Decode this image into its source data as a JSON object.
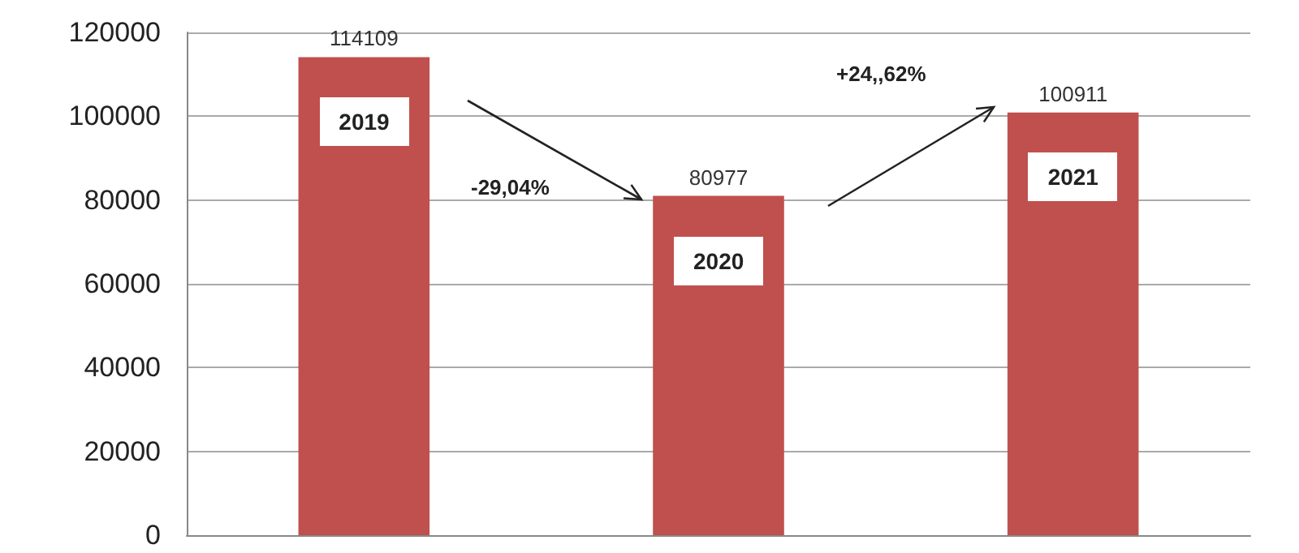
{
  "chart_data": {
    "type": "bar",
    "categories": [
      "2019",
      "2020",
      "2021"
    ],
    "values": [
      114109,
      80977,
      100911
    ],
    "color": "#c0504d",
    "ylim": [
      0,
      120000
    ],
    "yticks": [
      0,
      20000,
      40000,
      60000,
      80000,
      100000,
      120000
    ],
    "grid": "y",
    "data_labels": true,
    "annotations": [
      "-29,04%",
      "+24,,62%"
    ]
  }
}
